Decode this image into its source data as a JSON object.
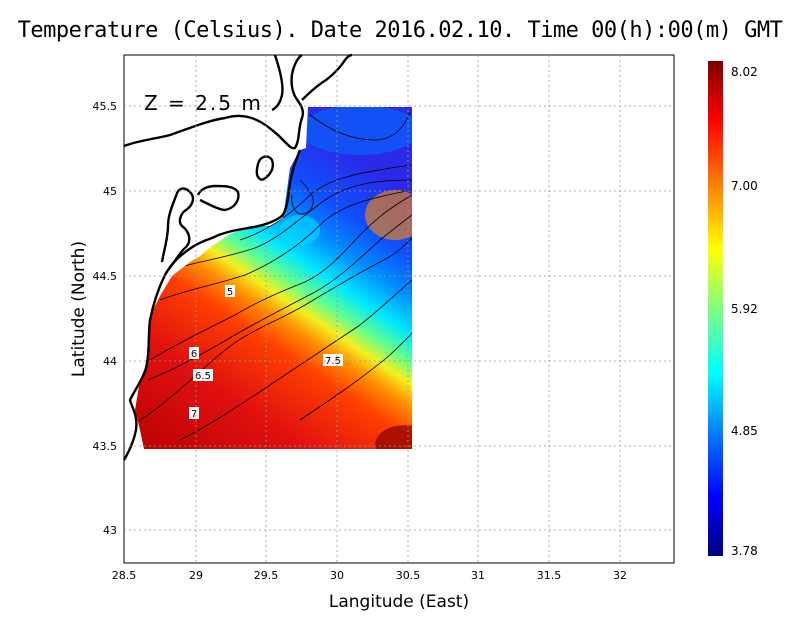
{
  "title": "Temperature (Celsius). Date 2016.02.10. Time 00(h):00(m) GMT",
  "depth_label": "Z = 2.5 m",
  "axes": {
    "xlabel": "Langitude (East)",
    "ylabel": "Latitude (North)",
    "xlim": [
      28.5,
      32.4
    ],
    "ylim": [
      42.8,
      45.8
    ],
    "x_ticks": [
      "28.5",
      "29",
      "29.5",
      "30",
      "30.5",
      "31",
      "31.5",
      "32"
    ],
    "y_ticks": [
      "43",
      "43.5",
      "44",
      "44.5",
      "45",
      "45.5"
    ],
    "grid": true
  },
  "colorbar": {
    "labels": [
      "8.02",
      "7.00",
      "5.92",
      "4.85",
      "3.78"
    ],
    "min": 3.78,
    "max": 8.02,
    "colors": [
      "#00007f",
      "#0000ff",
      "#007fff",
      "#00ffff",
      "#7fff7f",
      "#ffff00",
      "#ff7f00",
      "#ff0000",
      "#7f0000"
    ]
  },
  "contour_labels": [
    "5",
    "6",
    "6.5",
    "7",
    "7.5"
  ],
  "chart_data": {
    "type": "heatmap",
    "title": "Temperature (Celsius). Date 2016.02.10. Time 00(h):00(m) GMT",
    "xlabel": "Langitude (East)",
    "ylabel": "Latitude (North)",
    "units": "Celsius",
    "depth": "Z = 2.5 m",
    "value_range": [
      3.78,
      8.02
    ],
    "data_extent": {
      "lon": [
        28.63,
        30.55
      ],
      "lat": [
        43.48,
        45.5
      ]
    },
    "contour_levels": [
      5,
      6,
      6.5,
      7,
      7.5
    ]
  }
}
